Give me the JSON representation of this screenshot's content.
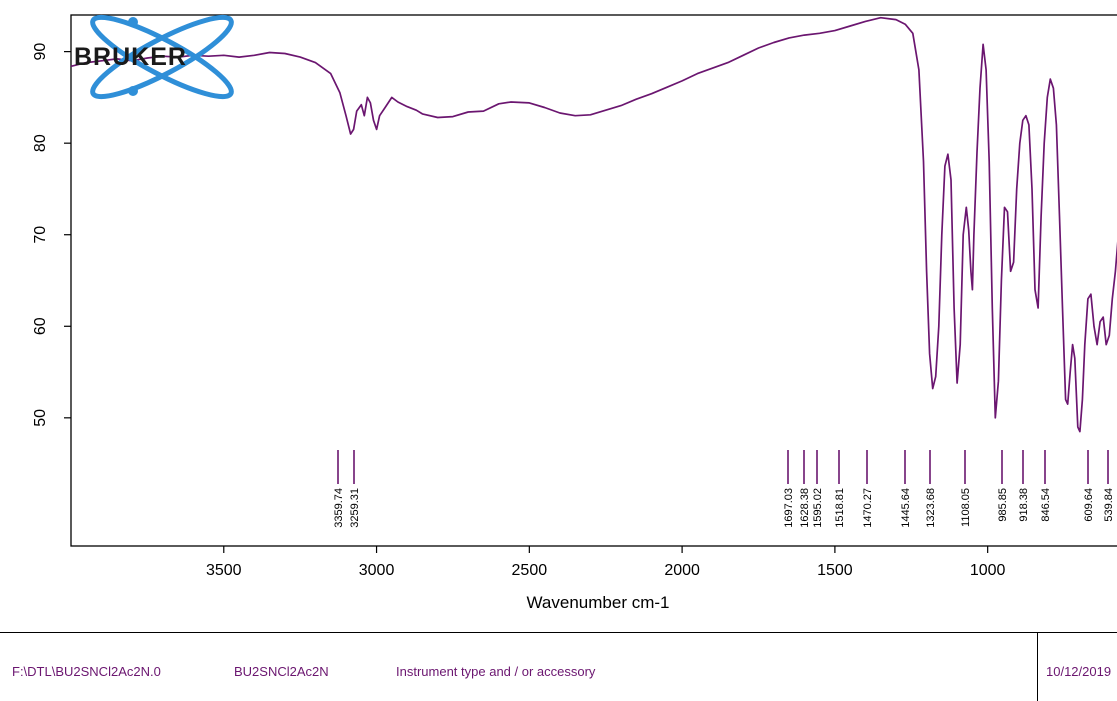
{
  "chart_data": {
    "type": "line",
    "xlabel": "Wavenumber cm-1",
    "ylabel": "",
    "xlim": [
      4000,
      400
    ],
    "x_reversed": true,
    "ylim": [
      36,
      94
    ],
    "x_ticks": [
      3500,
      3000,
      2500,
      2000,
      1500,
      1000
    ],
    "y_ticks": [
      50,
      60,
      70,
      80,
      90
    ],
    "series": [
      {
        "color": "#6b1670",
        "points": [
          [
            4000,
            88.4
          ],
          [
            3950,
            88.8
          ],
          [
            3900,
            89.0
          ],
          [
            3850,
            89.2
          ],
          [
            3800,
            89.0
          ],
          [
            3750,
            89.3
          ],
          [
            3700,
            89.5
          ],
          [
            3650,
            89.4
          ],
          [
            3600,
            89.6
          ],
          [
            3550,
            89.5
          ],
          [
            3500,
            89.6
          ],
          [
            3450,
            89.4
          ],
          [
            3400,
            89.6
          ],
          [
            3350,
            89.9
          ],
          [
            3300,
            89.8
          ],
          [
            3250,
            89.4
          ],
          [
            3200,
            88.8
          ],
          [
            3150,
            87.6
          ],
          [
            3120,
            85.5
          ],
          [
            3100,
            83.0
          ],
          [
            3085,
            81.0
          ],
          [
            3075,
            81.5
          ],
          [
            3065,
            83.5
          ],
          [
            3050,
            84.2
          ],
          [
            3040,
            83.0
          ],
          [
            3030,
            85.0
          ],
          [
            3020,
            84.4
          ],
          [
            3010,
            82.5
          ],
          [
            3000,
            81.5
          ],
          [
            2990,
            83.0
          ],
          [
            2970,
            84.0
          ],
          [
            2950,
            85.0
          ],
          [
            2930,
            84.5
          ],
          [
            2900,
            84.0
          ],
          [
            2870,
            83.6
          ],
          [
            2850,
            83.2
          ],
          [
            2800,
            82.8
          ],
          [
            2750,
            82.9
          ],
          [
            2700,
            83.4
          ],
          [
            2650,
            83.5
          ],
          [
            2600,
            84.3
          ],
          [
            2560,
            84.5
          ],
          [
            2500,
            84.4
          ],
          [
            2450,
            83.9
          ],
          [
            2400,
            83.3
          ],
          [
            2350,
            83.0
          ],
          [
            2300,
            83.1
          ],
          [
            2250,
            83.6
          ],
          [
            2200,
            84.1
          ],
          [
            2150,
            84.8
          ],
          [
            2100,
            85.4
          ],
          [
            2050,
            86.1
          ],
          [
            2000,
            86.8
          ],
          [
            1950,
            87.6
          ],
          [
            1900,
            88.2
          ],
          [
            1850,
            88.8
          ],
          [
            1800,
            89.6
          ],
          [
            1750,
            90.4
          ],
          [
            1700,
            91.0
          ],
          [
            1650,
            91.5
          ],
          [
            1600,
            91.8
          ],
          [
            1550,
            92.0
          ],
          [
            1500,
            92.3
          ],
          [
            1450,
            92.8
          ],
          [
            1400,
            93.3
          ],
          [
            1350,
            93.7
          ],
          [
            1300,
            93.5
          ],
          [
            1270,
            93.0
          ],
          [
            1245,
            92.0
          ],
          [
            1225,
            88.0
          ],
          [
            1210,
            78.0
          ],
          [
            1200,
            66.0
          ],
          [
            1190,
            57.0
          ],
          [
            1180,
            53.2
          ],
          [
            1170,
            54.5
          ],
          [
            1160,
            60.0
          ],
          [
            1150,
            70.0
          ],
          [
            1140,
            77.5
          ],
          [
            1130,
            78.8
          ],
          [
            1120,
            76.0
          ],
          [
            1110,
            62.0
          ],
          [
            1100,
            53.8
          ],
          [
            1090,
            58.0
          ],
          [
            1080,
            70.0
          ],
          [
            1070,
            73.0
          ],
          [
            1062,
            70.5
          ],
          [
            1055,
            66.0
          ],
          [
            1050,
            64.0
          ],
          [
            1045,
            70.0
          ],
          [
            1035,
            79.0
          ],
          [
            1025,
            86.0
          ],
          [
            1015,
            90.8
          ],
          [
            1005,
            88.0
          ],
          [
            995,
            78.0
          ],
          [
            985,
            62.0
          ],
          [
            975,
            50.0
          ],
          [
            965,
            54.0
          ],
          [
            955,
            65.0
          ],
          [
            945,
            73.0
          ],
          [
            935,
            72.5
          ],
          [
            925,
            66.0
          ],
          [
            915,
            67.0
          ],
          [
            905,
            75.0
          ],
          [
            895,
            80.0
          ],
          [
            885,
            82.5
          ],
          [
            875,
            83.0
          ],
          [
            865,
            82.0
          ],
          [
            855,
            75.0
          ],
          [
            845,
            64.0
          ],
          [
            835,
            62.0
          ],
          [
            825,
            72.0
          ],
          [
            815,
            80.0
          ],
          [
            805,
            85.0
          ],
          [
            795,
            87.0
          ],
          [
            785,
            86.0
          ],
          [
            775,
            82.0
          ],
          [
            765,
            72.0
          ],
          [
            755,
            62.0
          ],
          [
            745,
            52.0
          ],
          [
            738,
            51.5
          ],
          [
            730,
            55.0
          ],
          [
            722,
            58.0
          ],
          [
            715,
            56.5
          ],
          [
            705,
            49.0
          ],
          [
            698,
            48.5
          ],
          [
            690,
            52.0
          ],
          [
            682,
            58.0
          ],
          [
            672,
            63.0
          ],
          [
            662,
            63.5
          ],
          [
            652,
            60.0
          ],
          [
            642,
            58.0
          ],
          [
            632,
            60.5
          ],
          [
            622,
            61.0
          ],
          [
            612,
            58.0
          ],
          [
            602,
            59.0
          ],
          [
            592,
            63.0
          ],
          [
            582,
            66.0
          ],
          [
            572,
            70.0
          ],
          [
            562,
            73.0
          ],
          [
            552,
            75.0
          ],
          [
            545,
            76.0
          ],
          [
            538,
            73.0
          ],
          [
            530,
            70.0
          ],
          [
            522,
            66.5
          ],
          [
            515,
            69.0
          ],
          [
            505,
            72.0
          ],
          [
            495,
            74.0
          ],
          [
            485,
            76.0
          ],
          [
            475,
            79.0
          ],
          [
            468,
            80.5
          ],
          [
            460,
            79.0
          ],
          [
            452,
            72.0
          ],
          [
            445,
            61.5
          ],
          [
            440,
            65.0
          ],
          [
            432,
            72.0
          ],
          [
            425,
            73.0
          ],
          [
            418,
            70.0
          ],
          [
            410,
            66.5
          ],
          [
            403,
            71.0
          ],
          [
            400,
            73.0
          ]
        ]
      }
    ],
    "peak_labels": [
      "3359.74",
      "3259.31",
      "1697.03",
      "1628.38",
      "1595.02",
      "1518.81",
      "1470.27",
      "1445.64",
      "1323.68",
      "1108.05",
      "985.85",
      "918.38",
      "846.54",
      "609.64",
      "539.84"
    ]
  },
  "logo": {
    "text": "BRUKER"
  },
  "colors": {
    "line": "#6b1670",
    "peaks": "#6b1670",
    "footer_text": "#6b1670",
    "logo_blue": "#2f8fd8"
  },
  "footer": {
    "path": "F:\\DTL\\BU2SNCl2Ac2N.0",
    "sample": "BU2SNCl2Ac2N",
    "instrument": "Instrument type and / or accessory",
    "date": "10/12/2019"
  }
}
